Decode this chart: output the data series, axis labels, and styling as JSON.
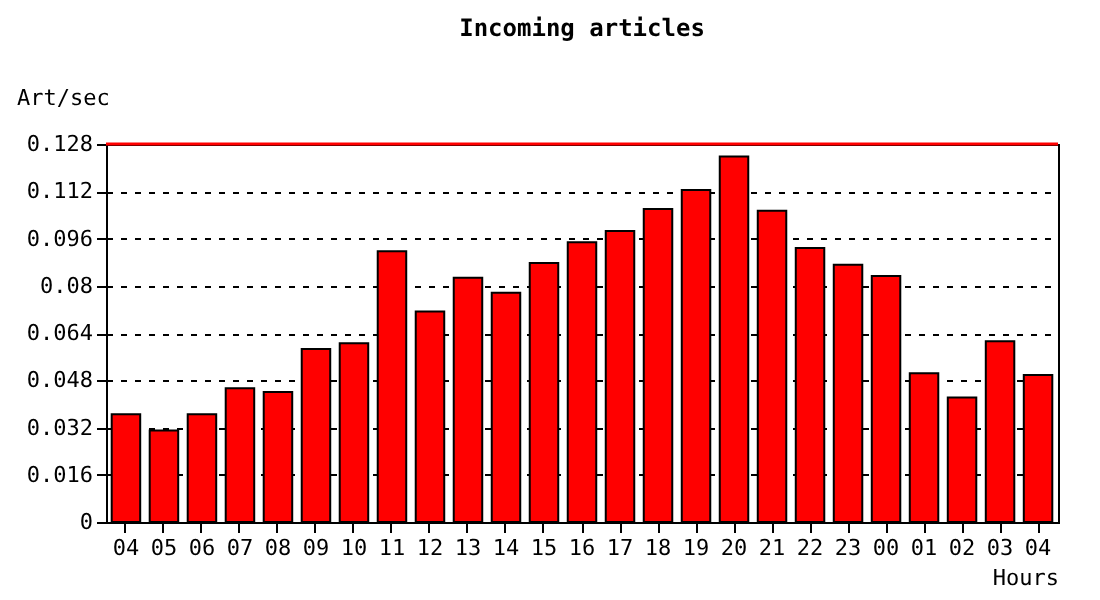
{
  "chart_data": {
    "type": "bar",
    "title": "Incoming articles",
    "ylabel": "Art/sec",
    "xlabel": "Hours",
    "categories": [
      "04",
      "05",
      "06",
      "07",
      "08",
      "09",
      "10",
      "11",
      "12",
      "13",
      "14",
      "15",
      "16",
      "17",
      "18",
      "19",
      "20",
      "21",
      "22",
      "23",
      "00",
      "01",
      "02",
      "03",
      "04"
    ],
    "values": [
      0.0365,
      0.031,
      0.0365,
      0.0453,
      0.044,
      0.0586,
      0.0605,
      0.0917,
      0.0713,
      0.0827,
      0.0776,
      0.0877,
      0.0947,
      0.0985,
      0.106,
      0.1124,
      0.1238,
      0.1054,
      0.0928,
      0.0871,
      0.0833,
      0.0504,
      0.0422,
      0.0612,
      0.0498
    ],
    "color": "#ff0000",
    "ylim": [
      0,
      0.128
    ],
    "yticks": [
      0,
      0.016,
      0.032,
      0.048,
      0.064,
      0.08,
      0.096,
      0.112,
      0.128
    ],
    "ref_lines": [
      {
        "axis": "y",
        "value": 0.128,
        "color": "#ff0000"
      }
    ],
    "grid": "y"
  }
}
